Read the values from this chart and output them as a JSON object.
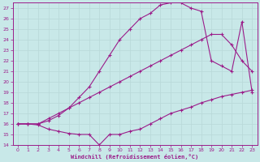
{
  "xlabel": "Windchill (Refroidissement éolien,°C)",
  "xlim": [
    -0.5,
    23.5
  ],
  "ylim": [
    14,
    27.5
  ],
  "yticks": [
    14,
    15,
    16,
    17,
    18,
    19,
    20,
    21,
    22,
    23,
    24,
    25,
    26,
    27
  ],
  "xticks": [
    0,
    1,
    2,
    3,
    4,
    5,
    6,
    7,
    8,
    9,
    10,
    11,
    12,
    13,
    14,
    15,
    16,
    17,
    18,
    19,
    20,
    21,
    22,
    23
  ],
  "line_color": "#9B1D8A",
  "bg_color": "#C8E8E8",
  "grid_color": "#AACCCC",
  "line1_x": [
    0,
    1,
    2,
    3,
    4,
    5,
    6,
    7,
    8,
    9,
    10,
    11,
    12,
    13,
    14,
    15,
    16,
    17,
    18,
    19,
    20,
    21,
    22,
    23
  ],
  "line1_y": [
    16.0,
    16.0,
    15.9,
    15.5,
    15.3,
    15.1,
    15.0,
    15.0,
    14.0,
    15.0,
    15.0,
    15.3,
    15.5,
    16.0,
    16.5,
    17.0,
    17.3,
    17.6,
    18.0,
    18.3,
    18.6,
    18.8,
    19.0,
    19.2
  ],
  "line2_x": [
    0,
    1,
    2,
    3,
    4,
    5,
    6,
    7,
    8,
    9,
    10,
    11,
    12,
    13,
    14,
    15,
    16,
    17,
    18,
    19,
    20,
    21,
    22,
    23
  ],
  "line2_y": [
    16.0,
    16.0,
    16.0,
    16.5,
    17.0,
    17.5,
    18.0,
    18.5,
    19.0,
    19.5,
    20.0,
    20.5,
    21.0,
    21.5,
    22.0,
    22.5,
    23.0,
    23.5,
    24.0,
    24.5,
    24.5,
    23.5,
    22.0,
    21.0
  ],
  "line3_x": [
    0,
    1,
    2,
    3,
    4,
    5,
    6,
    7,
    8,
    9,
    10,
    11,
    12,
    13,
    14,
    15,
    16,
    17,
    18,
    19,
    20,
    21,
    22,
    23
  ],
  "line3_y": [
    16.0,
    16.0,
    16.0,
    16.3,
    16.8,
    17.5,
    18.5,
    19.5,
    21.0,
    22.5,
    24.0,
    25.0,
    26.0,
    26.5,
    27.3,
    27.5,
    27.5,
    27.0,
    26.7,
    22.0,
    21.5,
    21.0,
    25.7,
    19.0
  ]
}
